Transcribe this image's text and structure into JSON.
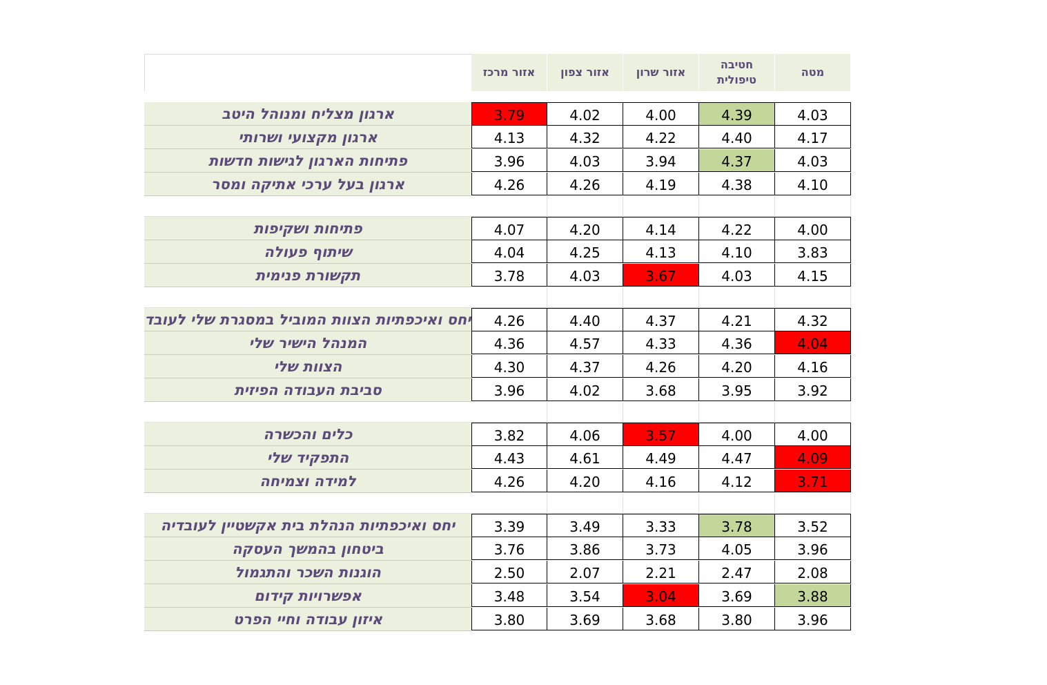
{
  "chart_data": {
    "type": "table",
    "columns": [
      "אזור מרכז",
      "אזור צפון",
      "אזור שרון",
      "חטיבה טיפולית",
      "מטה"
    ],
    "highlight_colors": {
      "red": "#ff0000",
      "green": "#c4d79b",
      "label_bg": "#ebf0df",
      "text": "#5b4a7a"
    },
    "groups": [
      {
        "rows": [
          {
            "label": "ארגון מצליח ומנוהל היטב",
            "values": [
              "3.79",
              "4.02",
              "4.00",
              "4.39",
              "4.03"
            ],
            "marks": [
              "red",
              "",
              "",
              "green",
              ""
            ]
          },
          {
            "label": "ארגון מקצועי ושרותי",
            "values": [
              "4.13",
              "4.32",
              "4.22",
              "4.40",
              "4.17"
            ],
            "marks": [
              "",
              "",
              "",
              "",
              ""
            ]
          },
          {
            "label": "פתיחות הארגון לגישות חדשות",
            "values": [
              "3.96",
              "4.03",
              "3.94",
              "4.37",
              "4.03"
            ],
            "marks": [
              "",
              "",
              "",
              "green",
              ""
            ]
          },
          {
            "label": "ארגון בעל ערכי אתיקה ומסר",
            "values": [
              "4.26",
              "4.26",
              "4.19",
              "4.38",
              "4.10"
            ],
            "marks": [
              "",
              "",
              "",
              "",
              ""
            ]
          }
        ]
      },
      {
        "rows": [
          {
            "label": "פתיחות ושקיפות",
            "values": [
              "4.07",
              "4.20",
              "4.14",
              "4.22",
              "4.00"
            ],
            "marks": [
              "",
              "",
              "",
              "",
              ""
            ]
          },
          {
            "label": "שיתוף פעולה",
            "values": [
              "4.04",
              "4.25",
              "4.13",
              "4.10",
              "3.83"
            ],
            "marks": [
              "",
              "",
              "",
              "",
              ""
            ]
          },
          {
            "label": "תקשורת פנימית",
            "values": [
              "3.78",
              "4.03",
              "3.67",
              "4.03",
              "4.15"
            ],
            "marks": [
              "",
              "",
              "red",
              "",
              ""
            ]
          }
        ]
      },
      {
        "rows": [
          {
            "label": "יחס ואיכפתיות הצוות המוביל במסגרת שלי לעובד",
            "values": [
              "4.26",
              "4.40",
              "4.37",
              "4.21",
              "4.32"
            ],
            "marks": [
              "",
              "",
              "",
              "",
              ""
            ]
          },
          {
            "label": "המנהל הישיר שלי",
            "values": [
              "4.36",
              "4.57",
              "4.33",
              "4.36",
              "4.04"
            ],
            "marks": [
              "",
              "",
              "",
              "",
              "red"
            ]
          },
          {
            "label": "הצוות שלי",
            "values": [
              "4.30",
              "4.37",
              "4.26",
              "4.20",
              "4.16"
            ],
            "marks": [
              "",
              "",
              "",
              "",
              ""
            ]
          },
          {
            "label": "סביבת העבודה הפיזית",
            "values": [
              "3.96",
              "4.02",
              "3.68",
              "3.95",
              "3.92"
            ],
            "marks": [
              "",
              "",
              "",
              "",
              ""
            ]
          }
        ]
      },
      {
        "rows": [
          {
            "label": "כלים והכשרה",
            "values": [
              "3.82",
              "4.06",
              "3.57",
              "4.00",
              "4.00"
            ],
            "marks": [
              "",
              "",
              "red",
              "",
              ""
            ]
          },
          {
            "label": "התפקיד שלי",
            "values": [
              "4.43",
              "4.61",
              "4.49",
              "4.47",
              "4.09"
            ],
            "marks": [
              "",
              "",
              "",
              "",
              "red"
            ]
          },
          {
            "label": "למידה וצמיחה",
            "values": [
              "4.26",
              "4.20",
              "4.16",
              "4.12",
              "3.71"
            ],
            "marks": [
              "",
              "",
              "",
              "",
              "red"
            ]
          }
        ]
      },
      {
        "rows": [
          {
            "label": "יחס ואיכפתיות הנהלת בית אקשטיין לעובדיה",
            "values": [
              "3.39",
              "3.49",
              "3.33",
              "3.78",
              "3.52"
            ],
            "marks": [
              "",
              "",
              "",
              "green",
              ""
            ]
          },
          {
            "label": "ביטחון בהמשך העסקה",
            "values": [
              "3.76",
              "3.86",
              "3.73",
              "4.05",
              "3.96"
            ],
            "marks": [
              "",
              "",
              "",
              "",
              ""
            ]
          },
          {
            "label": "הוגנות השכר והתגמול",
            "values": [
              "2.50",
              "2.07",
              "2.21",
              "2.47",
              "2.08"
            ],
            "marks": [
              "",
              "",
              "",
              "",
              ""
            ]
          },
          {
            "label": "אפשרויות קידום",
            "values": [
              "3.48",
              "3.54",
              "3.04",
              "3.69",
              "3.88"
            ],
            "marks": [
              "",
              "",
              "red",
              "",
              "green"
            ]
          },
          {
            "label": "איזון עבודה וחיי הפרט",
            "values": [
              "3.80",
              "3.69",
              "3.68",
              "3.80",
              "3.96"
            ],
            "marks": [
              "",
              "",
              "",
              "",
              ""
            ]
          }
        ]
      }
    ]
  }
}
